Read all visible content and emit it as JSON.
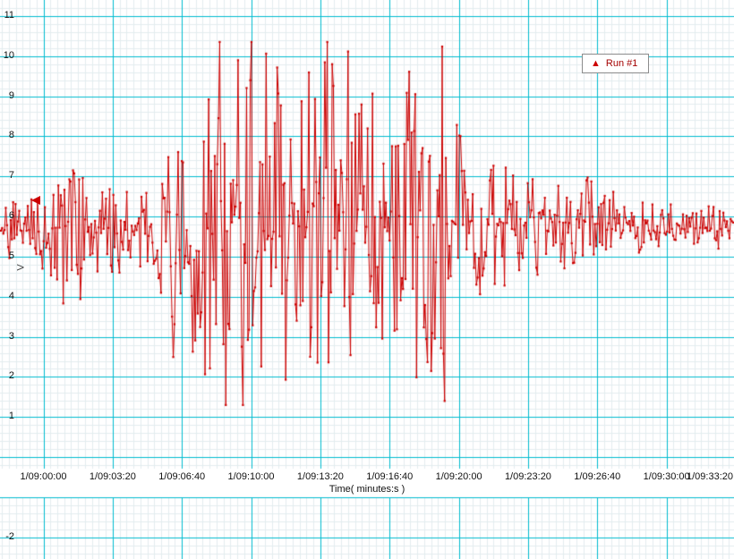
{
  "chart_data": {
    "type": "line",
    "title": "",
    "xlabel": "Time( minutes:s )",
    "ylabel": "V",
    "grid": "on",
    "legend": {
      "label": "Run #1",
      "position": "top-right"
    },
    "ylim": [
      -2,
      11
    ],
    "x_tick_labels": [
      "1/09:00:00",
      "1/09:03:20",
      "1/09:06:40",
      "1/09:10:00",
      "1/09:13:20",
      "1/09:16:40",
      "1/09:20:00",
      "1/09:23:20",
      "1/09:26:40",
      "1/09:30:00",
      "1/09:33:20"
    ],
    "y_tick_labels_upper": [
      "11",
      "10",
      "9",
      "8",
      "7",
      "6",
      "5",
      "4",
      "3",
      "2",
      "1"
    ],
    "y_tick_labels_lower": [
      "-2"
    ],
    "left_cursor_value": 6.4,
    "series": [
      {
        "name": "Run #1",
        "color": "#cc0000",
        "marker": "point",
        "baseline": 5.6,
        "clip_high": 10.35,
        "clip_low": 1.3,
        "samples": 600,
        "envelope_t_lo_hi": [
          [
            0.0,
            5.0,
            6.3
          ],
          [
            0.03,
            4.9,
            6.4
          ],
          [
            0.055,
            4.6,
            6.9
          ],
          [
            0.075,
            4.2,
            7.1
          ],
          [
            0.09,
            3.4,
            8.1
          ],
          [
            0.1,
            3.6,
            7.3
          ],
          [
            0.115,
            4.2,
            7.3
          ],
          [
            0.135,
            4.6,
            6.7
          ],
          [
            0.16,
            4.4,
            6.9
          ],
          [
            0.185,
            4.6,
            6.6
          ],
          [
            0.205,
            4.0,
            7.0
          ],
          [
            0.22,
            2.8,
            7.8
          ],
          [
            0.232,
            1.9,
            9.2
          ],
          [
            0.245,
            1.8,
            8.3
          ],
          [
            0.258,
            2.8,
            7.8
          ],
          [
            0.27,
            2.3,
            8.7
          ],
          [
            0.285,
            1.9,
            9.6
          ],
          [
            0.298,
            1.3,
            10.35
          ],
          [
            0.33,
            1.3,
            10.35
          ],
          [
            0.358,
            1.3,
            10.35
          ],
          [
            0.372,
            2.1,
            9.4
          ],
          [
            0.388,
            1.3,
            10.35
          ],
          [
            0.43,
            1.3,
            10.35
          ],
          [
            0.455,
            1.3,
            10.35
          ],
          [
            0.468,
            1.6,
            10.0
          ],
          [
            0.487,
            1.3,
            10.35
          ],
          [
            0.5,
            2.0,
            9.2
          ],
          [
            0.515,
            1.3,
            10.35
          ],
          [
            0.533,
            2.4,
            8.7
          ],
          [
            0.548,
            3.1,
            8.1
          ],
          [
            0.562,
            1.5,
            10.3
          ],
          [
            0.578,
            2.9,
            8.6
          ],
          [
            0.592,
            1.3,
            10.35
          ],
          [
            0.606,
            1.4,
            10.2
          ],
          [
            0.62,
            3.0,
            8.7
          ],
          [
            0.635,
            3.6,
            7.9
          ],
          [
            0.652,
            4.0,
            7.7
          ],
          [
            0.663,
            3.5,
            7.9
          ],
          [
            0.68,
            4.2,
            7.5
          ],
          [
            0.7,
            4.4,
            7.2
          ],
          [
            0.722,
            4.5,
            7.1
          ],
          [
            0.745,
            4.6,
            7.0
          ],
          [
            0.768,
            4.7,
            6.9
          ],
          [
            0.79,
            4.8,
            6.9
          ],
          [
            0.8,
            4.8,
            7.0
          ],
          [
            0.815,
            5.0,
            6.7
          ],
          [
            0.84,
            5.0,
            6.6
          ],
          [
            0.865,
            5.1,
            6.5
          ],
          [
            0.89,
            5.1,
            6.4
          ],
          [
            0.915,
            5.2,
            6.3
          ],
          [
            0.945,
            5.2,
            6.3
          ],
          [
            0.975,
            5.1,
            6.3
          ],
          [
            1.0,
            5.1,
            6.3
          ]
        ]
      }
    ]
  },
  "colors": {
    "trace": "#cc0000",
    "legend_text": "#a40000",
    "grid_major": "#00bcd0",
    "grid_minor": "#e3edef",
    "axis_text": "#111111",
    "background": "#ffffff"
  }
}
